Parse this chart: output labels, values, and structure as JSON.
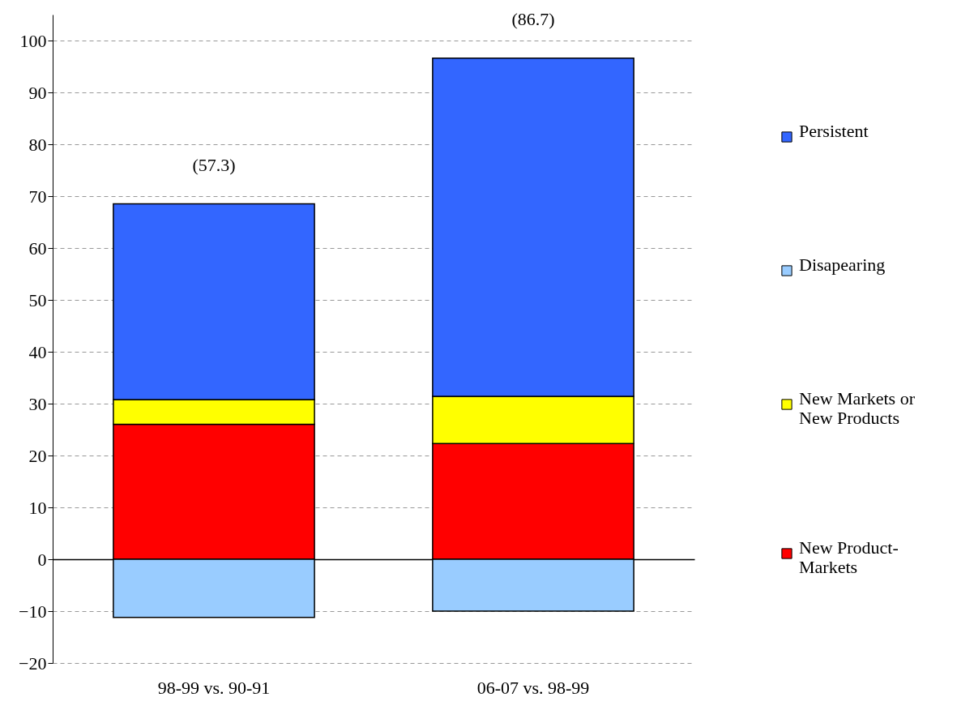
{
  "chart_data": {
    "type": "bar",
    "stacked": true,
    "categories": [
      "98-99 vs. 90-91",
      "06-07 vs. 98-99"
    ],
    "series": [
      {
        "name": "New Product-Markets",
        "color": "#ff0000",
        "values": [
          26.0,
          22.3
        ]
      },
      {
        "name": "New Markets or New Products",
        "color": "#ffff00",
        "values": [
          4.8,
          9.1
        ]
      },
      {
        "name": "Disapearing",
        "color": "#99ccff",
        "values": [
          -11.2,
          -10.0
        ]
      },
      {
        "name": "Persistent",
        "color": "#3366ff",
        "values": [
          37.7,
          65.2
        ]
      }
    ],
    "totals": [
      "(57.3)",
      "(86.7)"
    ],
    "ylim": [
      -20,
      105
    ],
    "yticks": [
      -20,
      -10,
      0,
      10,
      20,
      30,
      40,
      50,
      60,
      70,
      80,
      90,
      100
    ],
    "grid": "y",
    "legend": "right"
  }
}
